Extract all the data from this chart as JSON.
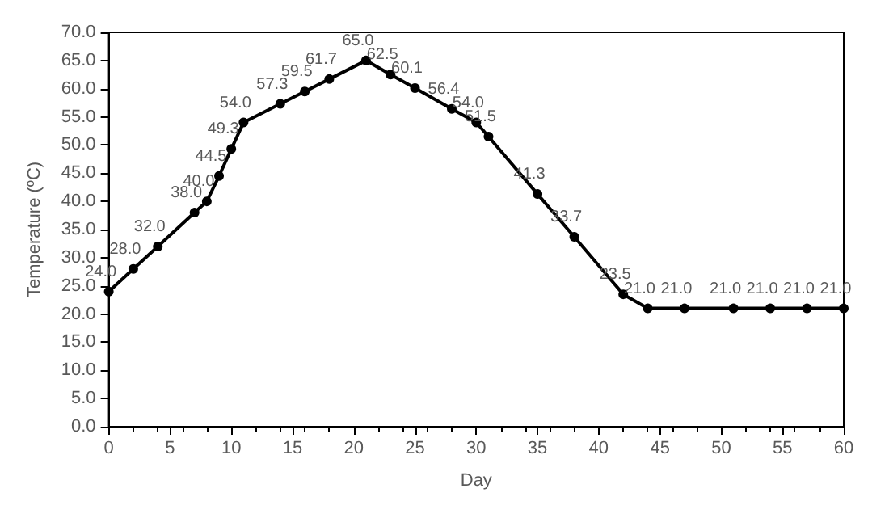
{
  "chart_data": {
    "type": "line",
    "xlabel": "Day",
    "ylabel": "Temperature (ºC)",
    "x": [
      0,
      2,
      4,
      7,
      8,
      9,
      10,
      11,
      14,
      16,
      18,
      21,
      23,
      25,
      28,
      30,
      31,
      35,
      38,
      42,
      44,
      47,
      51,
      54,
      57,
      60
    ],
    "series": [
      {
        "color": "#000000",
        "values": [
          24.0,
          28.0,
          32.0,
          38.0,
          40.0,
          44.5,
          49.3,
          54.0,
          57.3,
          59.5,
          61.7,
          65.0,
          62.5,
          60.1,
          56.4,
          54.0,
          51.5,
          41.3,
          33.7,
          23.5,
          21.0,
          21.0,
          21.0,
          21.0,
          21.0,
          21.0
        ],
        "value_labels": [
          "24.0",
          "28.0",
          "32.0",
          "38.0",
          "40.0",
          "44.5",
          "49.3",
          "54.0",
          "57.3",
          "59.5",
          "61.7",
          "65.0",
          "62.5",
          "60.1",
          "56.4",
          "54.0",
          "51.5",
          "41.3",
          "33.7",
          "23.5",
          "21.0",
          "21.0",
          "21.0",
          "21.0",
          "21.0",
          "21.0"
        ]
      }
    ],
    "xlim": [
      0,
      60
    ],
    "xticks": [
      0,
      5,
      10,
      15,
      20,
      25,
      30,
      35,
      40,
      45,
      50,
      55,
      60
    ],
    "ylim": [
      0,
      70
    ],
    "yticks": [
      {
        "value": 0,
        "label": "0.0"
      },
      {
        "value": 5,
        "label": "5.0"
      },
      {
        "value": 10,
        "label": "10.0"
      },
      {
        "value": 15,
        "label": "15.0"
      },
      {
        "value": 20,
        "label": "20.0"
      },
      {
        "value": 25,
        "label": "25.0"
      },
      {
        "value": 30,
        "label": "30.0"
      },
      {
        "value": 35,
        "label": "35.0"
      },
      {
        "value": 40,
        "label": "40.0"
      },
      {
        "value": 45,
        "label": "45.0"
      },
      {
        "value": 50,
        "label": "50.0"
      },
      {
        "value": 55,
        "label": "55.0"
      },
      {
        "value": 60,
        "label": "60.0"
      },
      {
        "value": 65,
        "label": "65.0"
      },
      {
        "value": 70,
        "label": "70.0"
      }
    ],
    "marker": "circle",
    "line_style": "solid",
    "grid": false
  }
}
